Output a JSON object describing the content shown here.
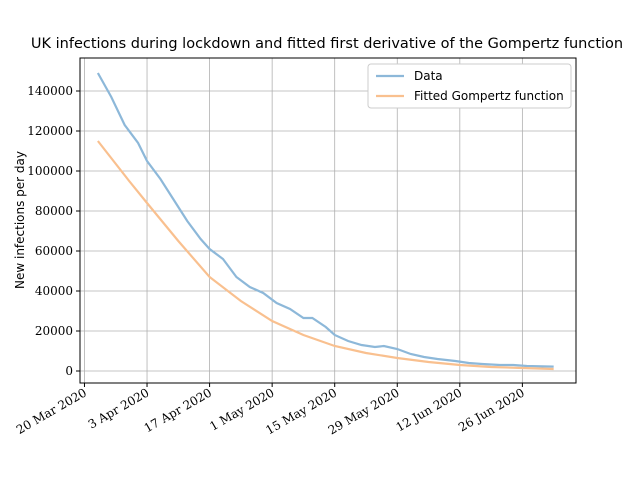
{
  "chart_data": {
    "type": "line",
    "title": "UK infections during lockdown and fitted first derivative of the Gompertz function",
    "y_label": "New infections per day",
    "xlim": [
      "2020-03-19",
      "2020-07-08"
    ],
    "xticks": [
      {
        "value": "2020-03-20",
        "label": "20 Mar 2020"
      },
      {
        "value": "2020-04-03",
        "label": "3 Apr 2020"
      },
      {
        "value": "2020-04-17",
        "label": "17 Apr 2020"
      },
      {
        "value": "2020-05-01",
        "label": "1 May 2020"
      },
      {
        "value": "2020-05-15",
        "label": "15 May 2020"
      },
      {
        "value": "2020-05-29",
        "label": "29 May 2020"
      },
      {
        "value": "2020-06-12",
        "label": "12 Jun 2020"
      },
      {
        "value": "2020-06-26",
        "label": "26 Jun 2020"
      }
    ],
    "ylim": [
      -6000,
      156500
    ],
    "yticks": [
      0,
      20000,
      40000,
      60000,
      80000,
      100000,
      120000,
      140000
    ],
    "grid": true,
    "legend": "upper right",
    "series": [
      {
        "name": "Data",
        "color": "#8db8d9",
        "x": [
          "2020-03-23",
          "2020-03-26",
          "2020-03-29",
          "2020-04-01",
          "2020-04-03",
          "2020-04-06",
          "2020-04-08",
          "2020-04-10",
          "2020-04-12",
          "2020-04-15",
          "2020-04-17",
          "2020-04-20",
          "2020-04-23",
          "2020-04-26",
          "2020-04-29",
          "2020-05-02",
          "2020-05-05",
          "2020-05-08",
          "2020-05-10",
          "2020-05-13",
          "2020-05-15",
          "2020-05-18",
          "2020-05-21",
          "2020-05-24",
          "2020-05-26",
          "2020-05-29",
          "2020-06-01",
          "2020-06-04",
          "2020-06-07",
          "2020-06-11",
          "2020-06-14",
          "2020-06-17",
          "2020-06-21",
          "2020-06-24",
          "2020-06-27",
          "2020-07-03"
        ],
        "values": [
          149000,
          137000,
          123000,
          114000,
          105000,
          96000,
          89000,
          82000,
          75000,
          66000,
          61000,
          56000,
          47000,
          42000,
          39000,
          34000,
          31000,
          26500,
          26500,
          22000,
          18000,
          15000,
          13000,
          12000,
          12500,
          11000,
          8500,
          7000,
          6000,
          5000,
          4000,
          3500,
          3000,
          3000,
          2500,
          2200
        ]
      },
      {
        "name": "Fitted Gompertz function",
        "color": "#f9c08f",
        "x": [
          "2020-03-23",
          "2020-03-30",
          "2020-04-03",
          "2020-04-10",
          "2020-04-17",
          "2020-04-24",
          "2020-05-01",
          "2020-05-08",
          "2020-05-15",
          "2020-05-22",
          "2020-05-29",
          "2020-06-05",
          "2020-06-12",
          "2020-06-19",
          "2020-06-26",
          "2020-07-03"
        ],
        "values": [
          115000,
          95000,
          84000,
          65000,
          47000,
          35000,
          25000,
          18000,
          12500,
          9000,
          6500,
          4500,
          3000,
          2000,
          1500,
          1000
        ]
      }
    ]
  }
}
